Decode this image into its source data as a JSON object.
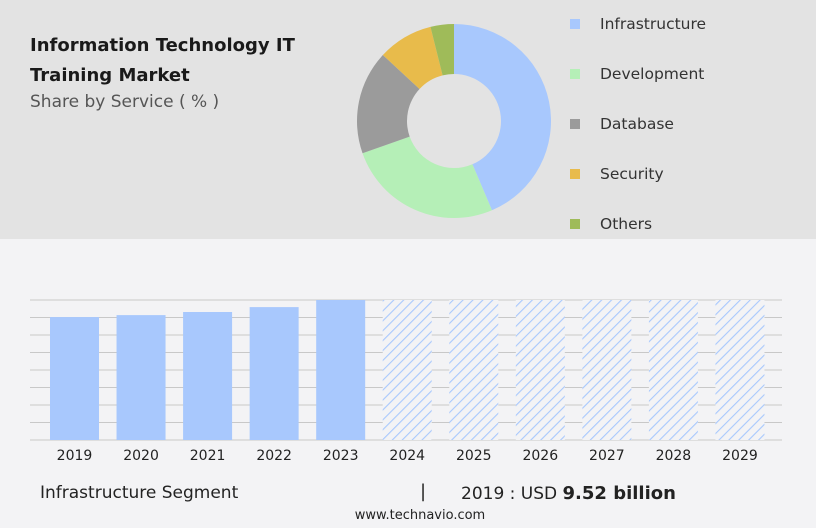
{
  "title": "Information Technology IT Training Market",
  "subtitle": "Share by Service ( % )",
  "chart_data": [
    {
      "type": "pie",
      "donut": true,
      "categories": [
        "Infrastructure",
        "Development",
        "Database",
        "Security",
        "Others"
      ],
      "values": [
        43.6,
        26.0,
        17.3,
        9.2,
        3.9
      ],
      "colors": [
        "#a8c8fd",
        "#b5efb7",
        "#9b9b9b",
        "#e8bb4b",
        "#9fbb59"
      ],
      "legend": "right"
    },
    {
      "type": "bar",
      "categories": [
        "2019",
        "2020",
        "2021",
        "2022",
        "2023",
        "2024",
        "2025",
        "2026",
        "2027",
        "2028",
        "2029"
      ],
      "values": [
        9.52,
        9.67,
        9.91,
        10.29,
        10.84,
        null,
        null,
        null,
        null,
        null,
        null
      ],
      "forecast_from": "2024",
      "bar_color": "#a8c8fd",
      "ylim": [
        0,
        10.84
      ],
      "grid": true
    }
  ],
  "footer": {
    "segment": "Infrastructure Segment",
    "separator": "|",
    "label": "2019 : USD",
    "value": "9.52 billion",
    "site": "www.technavio.com"
  }
}
